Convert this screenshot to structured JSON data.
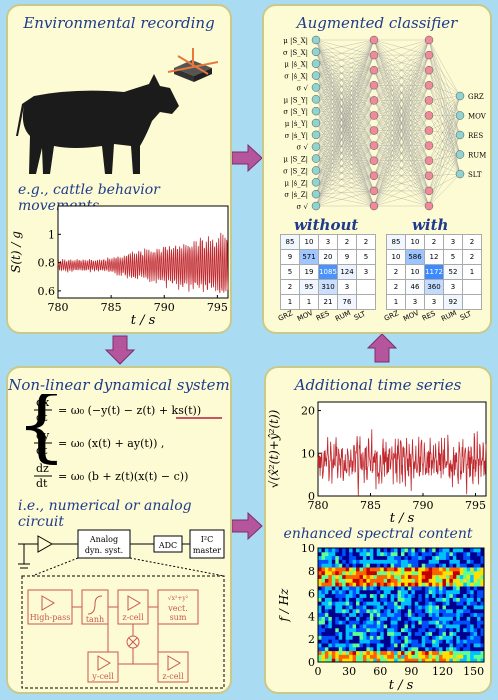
{
  "panels": {
    "env": {
      "title": "Environmental recording",
      "subtitle": "e.g., cattle behavior movements"
    },
    "cls": {
      "title": "Augmented classifier",
      "without": "without",
      "with": "with"
    },
    "nld": {
      "title": "Non-linear dynamical system",
      "subtitle": "i.e., numerical or analog circuit"
    },
    "ats": {
      "title": "Additional time series",
      "spectral": "enhanced spectral content"
    }
  },
  "classes": [
    "GRZ",
    "MOV",
    "RES",
    "RUM",
    "SLT"
  ],
  "features": [
    "μ",
    "σ",
    "μ",
    "σ",
    "σ",
    "μ",
    "σ",
    "μ",
    "σ",
    "σ",
    "μ",
    "σ",
    "μ",
    "σ",
    "σ"
  ],
  "feature_vars": [
    "|S_X|",
    "|S_X|",
    "|ṡ_X|",
    "|ṡ_X|",
    "√",
    "|S_Y|",
    "|S_Y|",
    "|ṡ_Y|",
    "|ṡ_Y|",
    "√",
    "|S_Z|",
    "|S_Z|",
    "|ṡ_Z|",
    "|ṡ_Z|",
    "√"
  ],
  "cm_without": [
    [
      85,
      10,
      3,
      2,
      2
    ],
    [
      9,
      571,
      20,
      9,
      5
    ],
    [
      5,
      19,
      1085,
      124,
      3
    ],
    [
      2,
      95,
      310,
      3,
      ""
    ],
    [
      1,
      1,
      21,
      76,
      ""
    ]
  ],
  "cm_with": [
    [
      85,
      10,
      2,
      3,
      2
    ],
    [
      10,
      586,
      12,
      5,
      2
    ],
    [
      2,
      10,
      1172,
      52,
      1
    ],
    [
      2,
      46,
      360,
      3,
      ""
    ],
    [
      1,
      3,
      3,
      92,
      ""
    ]
  ],
  "circuit": {
    "analog": "Analog",
    "dyn": "dyn. syst.",
    "adc": "ADC",
    "i2c": "I²C",
    "master": "master",
    "highpass": "High-pass",
    "tanh": "tanh",
    "zcell": "z-cell",
    "vect": "vect.",
    "sum": "sum",
    "ycell": "y-cell",
    "zcell2": "z-cell",
    "sqrt": "√x²+y²"
  },
  "chart_data": [
    {
      "type": "line",
      "xlabel": "t / s",
      "ylabel": "S(t) / g",
      "xlim": [
        780,
        796
      ],
      "ylim": [
        0.55,
        1.2
      ],
      "x_ticks": [
        780,
        785,
        790,
        795
      ],
      "y_ticks": [
        0.6,
        0.8,
        1
      ]
    },
    {
      "type": "line",
      "xlabel": "t / s",
      "ylabel": "√(x̂²(t)+ŷ²(t))",
      "xlim": [
        780,
        796
      ],
      "ylim": [
        0,
        22
      ],
      "x_ticks": [
        780,
        785,
        790,
        795
      ],
      "y_ticks": [
        0,
        10,
        20
      ]
    },
    {
      "type": "heatmap",
      "xlabel": "t / s",
      "ylabel": "f / Hz",
      "xlim": [
        0,
        160
      ],
      "ylim": [
        0,
        10
      ],
      "x_ticks": [
        0,
        30,
        60,
        90,
        120,
        150
      ],
      "y_ticks": [
        0,
        2,
        4,
        6,
        8,
        10
      ]
    }
  ],
  "equations": {
    "dx": "= ω₀ (−y(t) − z(t) + ks(t))",
    "dy": "= ω₀ (x(t) + ay(t)) ,",
    "dz": "= ω₀ (b + z(t)(x(t) − c))"
  }
}
